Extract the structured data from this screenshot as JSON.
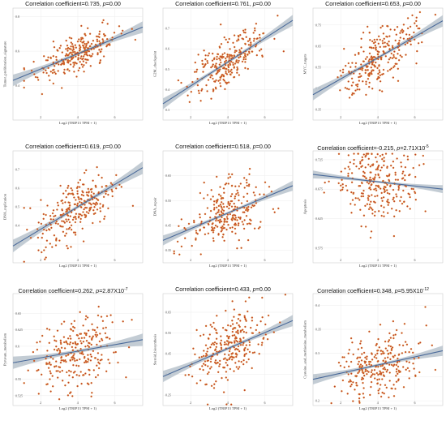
{
  "chart_data": [
    {
      "type": "scatter",
      "title_prefix": "Correlation coefficient=",
      "r": "0.735",
      "p_prefix": "p=",
      "p_value": "0.00",
      "p_exp": "",
      "xlabel": "Log2 (TRIP13 TPM + 1)",
      "ylabel": "Tumor_proliferation_signature",
      "xlim": [
        0.5,
        7.5
      ],
      "ylim": [
        0.2,
        0.85
      ],
      "yticks": [
        0.4,
        0.6,
        0.8
      ],
      "xticks": [
        2,
        4,
        6
      ],
      "fit": {
        "x": [
          0.5,
          7.5
        ],
        "y": [
          0.43,
          0.74
        ]
      },
      "band_width": 0.025,
      "point_spread": 0.055
    },
    {
      "type": "scatter",
      "title_prefix": "Correlation coefficient=",
      "r": "0.761",
      "p_prefix": "p=",
      "p_value": "0.00",
      "p_exp": "",
      "xlabel": "Log2 (TRIP13 TPM + 1)",
      "ylabel": "G2M_checkpoint",
      "xlim": [
        0.5,
        7.5
      ],
      "ylim": [
        0.25,
        0.8
      ],
      "yticks": [
        0.3,
        0.4,
        0.5,
        0.6,
        0.7
      ],
      "xticks": [
        2,
        4,
        6
      ],
      "fit": {
        "x": [
          0.5,
          7.5
        ],
        "y": [
          0.33,
          0.74
        ]
      },
      "band_width": 0.02,
      "point_spread": 0.06
    },
    {
      "type": "scatter",
      "title_prefix": "Correlation coefficient=",
      "r": "0.653",
      "p_prefix": "p=",
      "p_value": "0.00",
      "p_exp": "",
      "xlabel": "Log2 (TRIP13 TPM + 1)",
      "ylabel": "MYC_targets",
      "xlim": [
        0.5,
        7.5
      ],
      "ylim": [
        0.3,
        0.83
      ],
      "yticks": [
        0.35,
        0.45,
        0.55,
        0.65,
        0.75
      ],
      "xticks": [
        2,
        4,
        6
      ],
      "fit": {
        "x": [
          0.5,
          7.5
        ],
        "y": [
          0.42,
          0.77
        ]
      },
      "band_width": 0.02,
      "point_spread": 0.065
    },
    {
      "type": "scatter",
      "title_prefix": "Correlation coefficient=",
      "r": "0.619",
      "p_prefix": "p=",
      "p_value": "0.00",
      "p_exp": "",
      "xlabel": "Log2 (TRIP13 TPM + 1)",
      "ylabel": "DNA_replication",
      "xlim": [
        0.5,
        7.5
      ],
      "ylim": [
        0.2,
        0.8
      ],
      "yticks": [
        0.3,
        0.4,
        0.5,
        0.6,
        0.7
      ],
      "xticks": [
        2,
        4,
        6
      ],
      "fit": {
        "x": [
          0.5,
          7.5
        ],
        "y": [
          0.29,
          0.71
        ]
      },
      "band_width": 0.025,
      "point_spread": 0.08
    },
    {
      "type": "scatter",
      "title_prefix": "Correlation coefficient=",
      "r": "0.518",
      "p_prefix": "p=",
      "p_value": "0.00",
      "p_exp": "",
      "xlabel": "Log2 (TRIP13 TPM + 1)",
      "ylabel": "DNA_repair",
      "xlim": [
        0.5,
        7.5
      ],
      "ylim": [
        0.3,
        0.75
      ],
      "yticks": [
        0.35,
        0.45,
        0.55,
        0.65
      ],
      "xticks": [
        2,
        4,
        6
      ],
      "fit": {
        "x": [
          0.5,
          7.5
        ],
        "y": [
          0.39,
          0.61
        ]
      },
      "band_width": 0.015,
      "point_spread": 0.06
    },
    {
      "type": "scatter",
      "title_prefix": "Correlation coefficient=",
      "r": "-0.215",
      "p_prefix": "p=",
      "p_value": "2.71X10",
      "p_exp": "-5",
      "xlabel": "Log2 (TRIP13 TPM + 1)",
      "ylabel": "Apoptosis",
      "xlim": [
        0.5,
        7.5
      ],
      "ylim": [
        0.55,
        0.74
      ],
      "yticks": [
        0.575,
        0.625,
        0.675,
        0.725
      ],
      "xticks": [
        2,
        4,
        6
      ],
      "fit": {
        "x": [
          0.5,
          7.5
        ],
        "y": [
          0.7,
          0.675
        ]
      },
      "band_width": 0.005,
      "point_spread": 0.035
    },
    {
      "type": "scatter",
      "title_prefix": "Correlation coefficient=",
      "r": "0.262",
      "p_prefix": "p=",
      "p_value": "2.87X10",
      "p_exp": "-7",
      "xlabel": "Log2 (TRIP13 TPM + 1)",
      "ylabel": "Pyruvate_metabolism",
      "xlim": [
        0.5,
        7.5
      ],
      "ylim": [
        0.51,
        0.68
      ],
      "yticks": [
        0.525,
        0.55,
        0.575,
        0.6,
        0.625,
        0.65
      ],
      "xticks": [
        2,
        4,
        6
      ],
      "fit": {
        "x": [
          0.5,
          7.5
        ],
        "y": [
          0.575,
          0.61
        ]
      },
      "band_width": 0.007,
      "point_spread": 0.025
    },
    {
      "type": "scatter",
      "title_prefix": "Correlation coefficient=",
      "r": "0.433",
      "p_prefix": "p=",
      "p_value": "0.00",
      "p_exp": "",
      "xlabel": "Log2 (TRIP13 TPM + 1)",
      "ylabel": "Steroid_biosynthesis",
      "xlim": [
        0.5,
        7.5
      ],
      "ylim": [
        0.2,
        0.74
      ],
      "yticks": [
        0.25,
        0.35,
        0.45,
        0.55,
        0.65
      ],
      "xticks": [
        2,
        4,
        6
      ],
      "fit": {
        "x": [
          0.5,
          7.5
        ],
        "y": [
          0.34,
          0.61
        ]
      },
      "band_width": 0.02,
      "point_spread": 0.08
    },
    {
      "type": "scatter",
      "title_prefix": "Correlation coefficient=",
      "r": "0.348",
      "p_prefix": "p=",
      "p_value": "5.95X10",
      "p_exp": "-12",
      "xlabel": "Log2 (TRIP13 TPM + 1)",
      "ylabel": "Cysteine_and_methionine_metabolism",
      "xlim": [
        0.5,
        7.5
      ],
      "ylim": [
        0.19,
        0.425
      ],
      "yticks": [
        0.2,
        0.25,
        0.3,
        0.35,
        0.4
      ],
      "xticks": [
        2,
        4,
        6
      ],
      "fit": {
        "x": [
          0.5,
          7.5
        ],
        "y": [
          0.245,
          0.305
        ]
      },
      "band_width": 0.008,
      "point_spread": 0.035
    }
  ],
  "colors": {
    "point": "#c0392b",
    "point_edge": "#e0a030",
    "fit": "#4a6a9a",
    "band": "#b9c3cd"
  }
}
